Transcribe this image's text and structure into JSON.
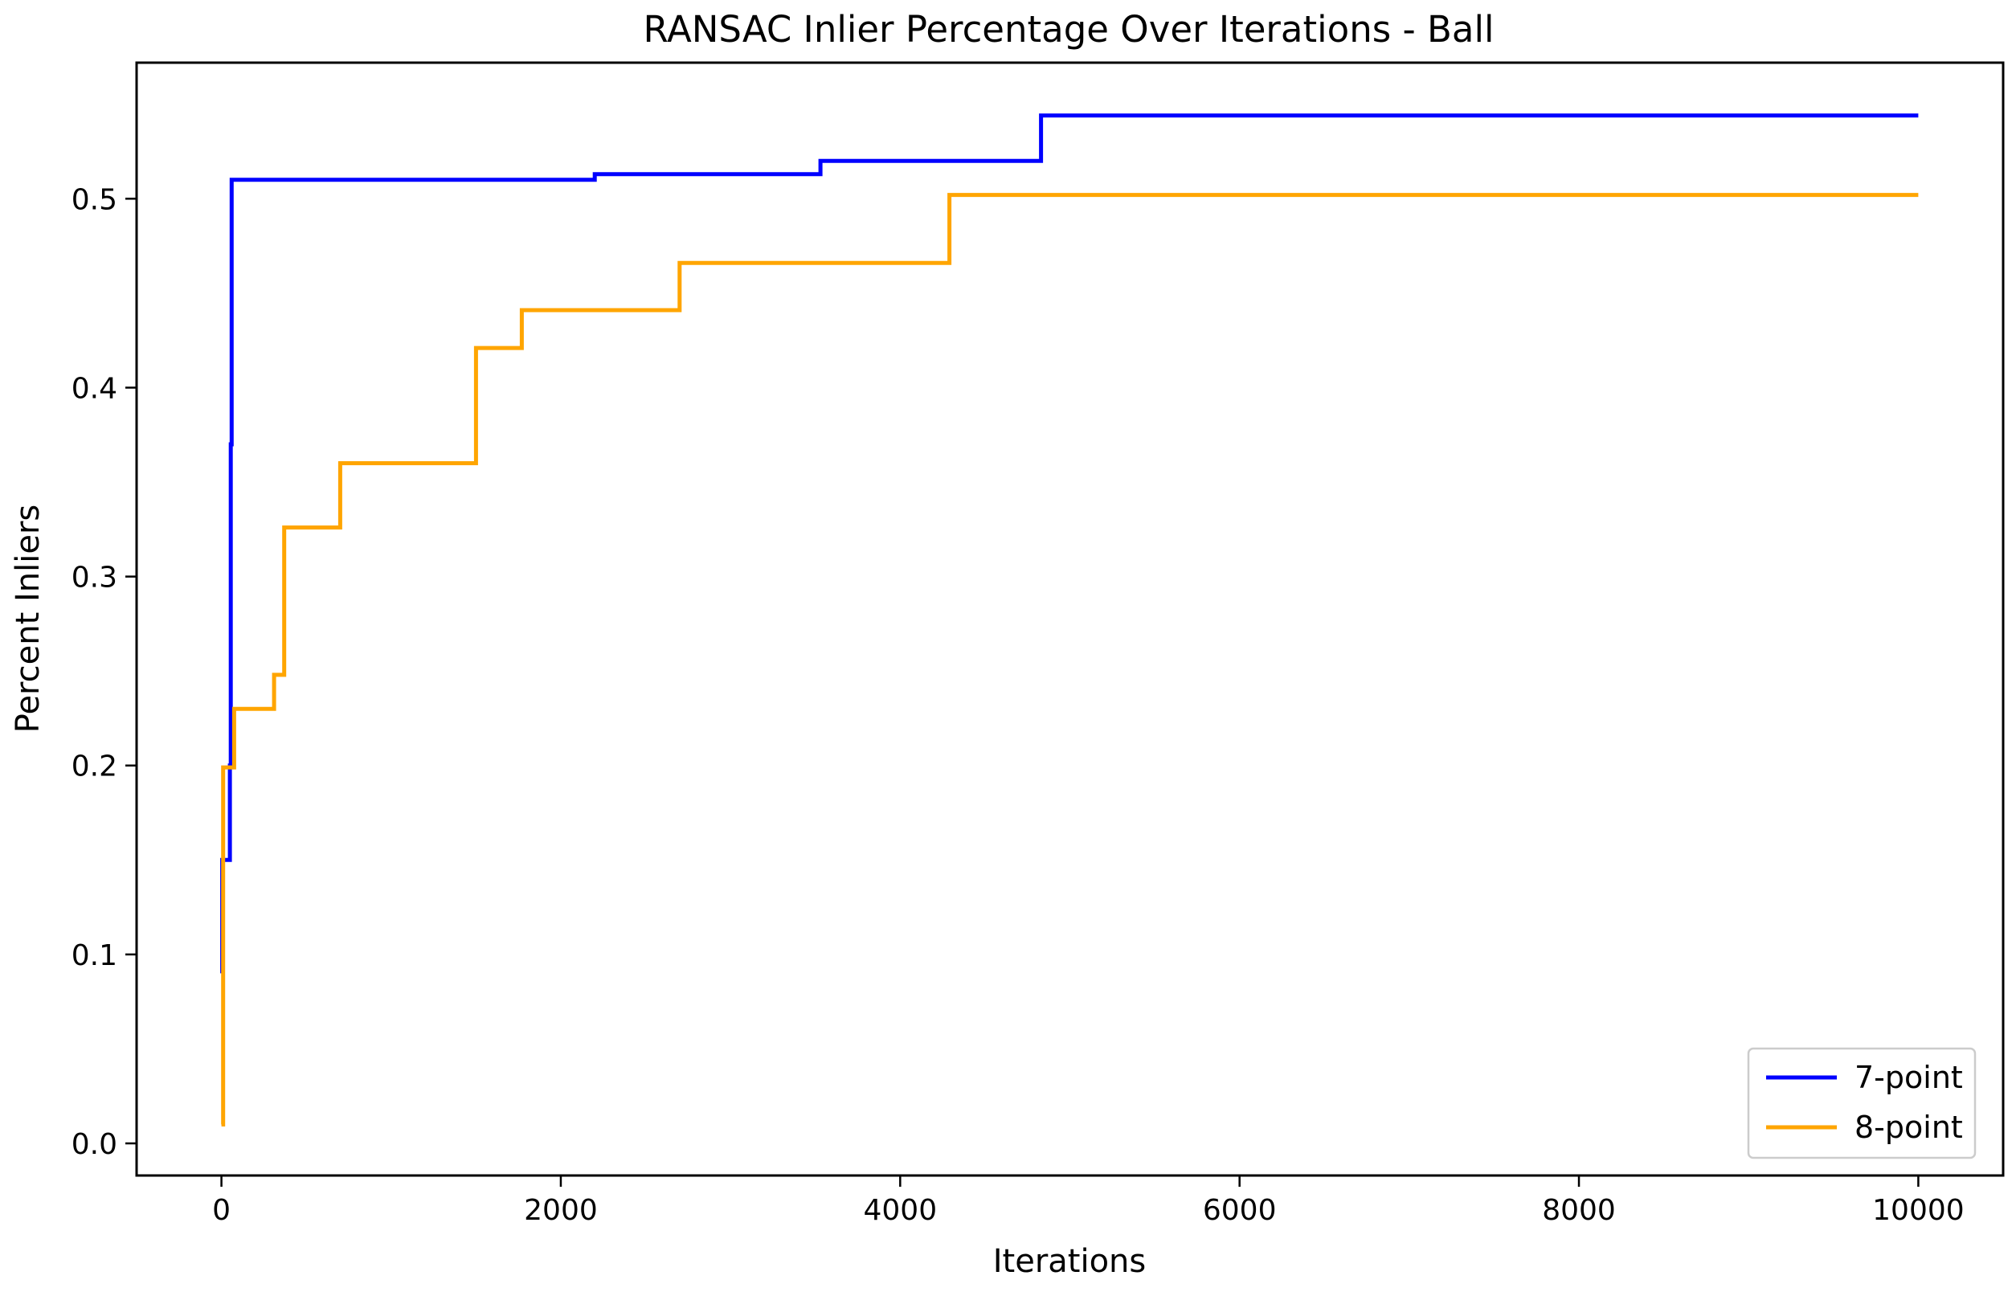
{
  "chart_data": {
    "type": "line",
    "title": "RANSAC Inlier Percentage Over Iterations - Ball",
    "xlabel": "Iterations",
    "ylabel": "Percent Inliers",
    "xlim": [
      -500,
      10500
    ],
    "ylim": [
      -0.017,
      0.572
    ],
    "xticks": [
      0,
      2000,
      4000,
      6000,
      8000,
      10000
    ],
    "xtick_labels": [
      "0",
      "2000",
      "4000",
      "6000",
      "8000",
      "10000"
    ],
    "yticks": [
      0.0,
      0.1,
      0.2,
      0.3,
      0.4,
      0.5
    ],
    "ytick_labels": [
      "0.0",
      "0.1",
      "0.2",
      "0.3",
      "0.4",
      "0.5"
    ],
    "grid": false,
    "legend_position": "lower right",
    "step": true,
    "series": [
      {
        "name": "7-point",
        "color": "#0000ff",
        "x": [
          0,
          5,
          40,
          50,
          55,
          60,
          2200,
          3530,
          4830,
          10000
        ],
        "y": [
          0.09,
          0.15,
          0.15,
          0.2,
          0.37,
          0.51,
          0.513,
          0.52,
          0.544,
          0.544
        ]
      },
      {
        "name": "8-point",
        "color": "#ffa500",
        "x": [
          0,
          10,
          75,
          310,
          370,
          700,
          1500,
          1770,
          2700,
          4290,
          10000
        ],
        "y": [
          0.01,
          0.199,
          0.23,
          0.248,
          0.326,
          0.36,
          0.421,
          0.441,
          0.466,
          0.502,
          0.502
        ]
      }
    ]
  }
}
